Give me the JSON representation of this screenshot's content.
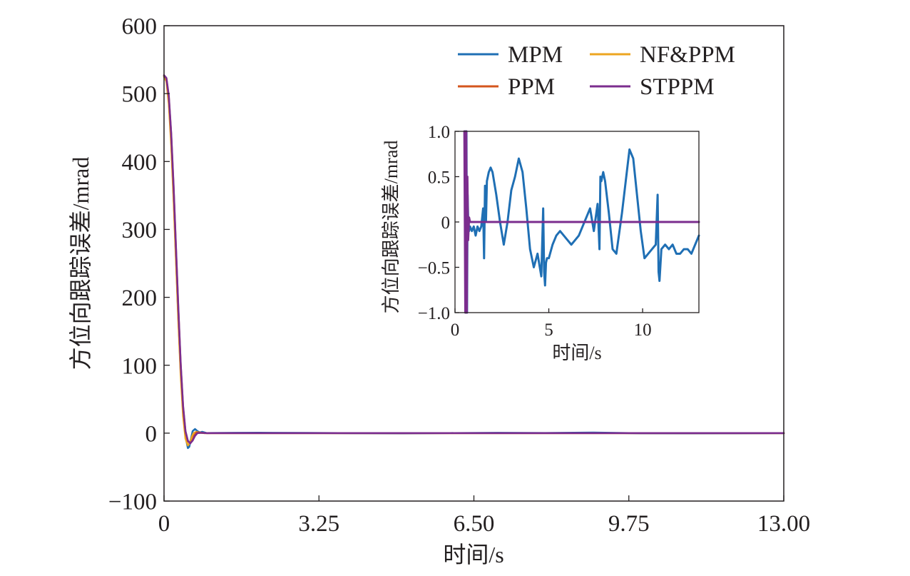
{
  "chart_data": [
    {
      "type": "line",
      "title": "",
      "xlabel": "时间/s",
      "ylabel": "方位向跟踪误差/mrad",
      "xlim": [
        0,
        13
      ],
      "ylim": [
        -100,
        600
      ],
      "xticks": [
        0,
        3.25,
        6.5,
        9.75,
        13
      ],
      "xtick_labels": [
        "0",
        "3.25",
        "6.50",
        "9.75",
        "13.00"
      ],
      "yticks": [
        -100,
        0,
        100,
        200,
        300,
        400,
        500,
        600
      ],
      "ytick_labels": [
        "−100",
        "0",
        "100",
        "200",
        "300",
        "400",
        "500",
        "600"
      ],
      "grid": false,
      "legend_position": "top-right",
      "series": [
        {
          "name": "MPM",
          "color": "#1f6fb4",
          "x": [
            0,
            0.05,
            0.1,
            0.15,
            0.2,
            0.25,
            0.3,
            0.35,
            0.4,
            0.45,
            0.5,
            0.53,
            0.56,
            0.6,
            0.65,
            0.7,
            0.75,
            0.8,
            0.9,
            1.0,
            1.5,
            2.0,
            3.0,
            4.0,
            5.0,
            6.0,
            7.0,
            8.0,
            9.0,
            10.0,
            11.0,
            12.0,
            13.0
          ],
          "y": [
            525,
            520,
            490,
            430,
            350,
            260,
            170,
            90,
            30,
            -5,
            -22,
            -20,
            -10,
            3,
            6,
            3,
            1,
            2,
            0,
            0.2,
            0.5,
            0.6,
            0.3,
            -0.1,
            -0.3,
            0.1,
            0.5,
            0.2,
            0.8,
            -0.2,
            -0.3,
            -0.2,
            0
          ]
        },
        {
          "name": "NF&PPM",
          "color": "#eca520",
          "x": [
            0,
            0.05,
            0.1,
            0.15,
            0.2,
            0.25,
            0.3,
            0.35,
            0.4,
            0.45,
            0.5,
            0.55,
            0.58,
            0.62,
            0.68,
            0.75,
            0.85,
            1.0,
            13.0
          ],
          "y": [
            525,
            518,
            485,
            425,
            345,
            255,
            165,
            85,
            25,
            -8,
            -18,
            -14,
            -6,
            0,
            2,
            0.5,
            0,
            0,
            0
          ]
        },
        {
          "name": "PPM",
          "color": "#d4561d",
          "x": [
            0,
            0.05,
            0.1,
            0.15,
            0.2,
            0.25,
            0.3,
            0.35,
            0.4,
            0.45,
            0.5,
            0.55,
            0.6,
            0.63,
            0.68,
            0.75,
            0.85,
            1.0,
            13.0
          ],
          "y": [
            527,
            522,
            495,
            440,
            362,
            272,
            182,
            100,
            38,
            2,
            -12,
            -15,
            -10,
            -4,
            1,
            1,
            0,
            0,
            0
          ]
        },
        {
          "name": "STPPM",
          "color": "#7b2d8e",
          "x": [
            0,
            0.05,
            0.1,
            0.15,
            0.2,
            0.25,
            0.3,
            0.35,
            0.4,
            0.45,
            0.5,
            0.55,
            0.6,
            0.65,
            0.7,
            0.8,
            0.9,
            1.0,
            13.0
          ],
          "y": [
            527,
            523,
            497,
            442,
            365,
            275,
            185,
            102,
            40,
            3,
            -11,
            -15,
            -11,
            -4,
            0,
            0.5,
            0,
            0,
            0
          ]
        }
      ]
    },
    {
      "type": "line",
      "title": "",
      "xlabel": "时间/s",
      "ylabel": "方位向跟踪误差/mrad",
      "xlim": [
        0,
        13
      ],
      "ylim": [
        -1.0,
        1.0
      ],
      "xticks": [
        0,
        5,
        10
      ],
      "xtick_labels": [
        "0",
        "5",
        "10"
      ],
      "yticks": [
        -1.0,
        -0.5,
        0,
        0.5,
        1.0
      ],
      "ytick_labels": [
        "−1.0",
        "−0.5",
        "0",
        "0.5",
        "1.0"
      ],
      "grid": false,
      "series": [
        {
          "name": "MPM",
          "color": "#1f6fb4",
          "x": [
            0.55,
            0.58,
            0.61,
            0.64,
            0.67,
            0.7,
            0.75,
            0.8,
            0.9,
            1.0,
            1.1,
            1.2,
            1.3,
            1.4,
            1.5,
            1.55,
            1.6,
            1.65,
            1.7,
            1.8,
            1.9,
            2.0,
            2.2,
            2.4,
            2.6,
            2.8,
            3.0,
            3.2,
            3.4,
            3.6,
            3.8,
            4.0,
            4.2,
            4.4,
            4.6,
            4.7,
            4.75,
            4.8,
            4.85,
            4.9,
            5.0,
            5.2,
            5.4,
            5.6,
            5.8,
            6.0,
            6.2,
            6.4,
            6.6,
            6.8,
            7.0,
            7.2,
            7.4,
            7.6,
            7.7,
            7.75,
            7.8,
            7.9,
            8.0,
            8.2,
            8.4,
            8.6,
            8.7,
            8.9,
            9.1,
            9.3,
            9.5,
            9.7,
            9.9,
            10.1,
            10.3,
            10.5,
            10.7,
            10.8,
            10.85,
            10.9,
            11.0,
            11.2,
            11.4,
            11.6,
            11.8,
            12.0,
            12.2,
            12.4,
            12.6,
            12.8,
            13.0
          ],
          "y": [
            1.0,
            -1.0,
            1.0,
            -1.0,
            0.3,
            0.05,
            -0.1,
            -0.05,
            -0.1,
            -0.05,
            -0.15,
            -0.05,
            -0.1,
            -0.05,
            0.15,
            -0.4,
            0.4,
            0.0,
            0.45,
            0.55,
            0.6,
            0.55,
            0.3,
            0.0,
            -0.25,
            0.0,
            0.35,
            0.5,
            0.7,
            0.55,
            0.15,
            -0.3,
            -0.5,
            -0.35,
            -0.6,
            0.15,
            -0.55,
            -0.7,
            -0.45,
            -0.4,
            -0.4,
            -0.25,
            -0.15,
            -0.1,
            -0.15,
            -0.2,
            -0.25,
            -0.2,
            -0.15,
            -0.05,
            0.05,
            0.15,
            -0.1,
            0.2,
            -0.3,
            0.5,
            0.45,
            0.55,
            0.45,
            0.1,
            -0.3,
            -0.35,
            -0.2,
            0.1,
            0.45,
            0.8,
            0.7,
            0.3,
            -0.1,
            -0.4,
            -0.35,
            -0.3,
            -0.25,
            0.3,
            -0.55,
            -0.65,
            -0.3,
            -0.25,
            -0.3,
            -0.25,
            -0.35,
            -0.35,
            -0.3,
            -0.3,
            -0.35,
            -0.25,
            -0.15
          ]
        },
        {
          "name": "STPPM",
          "color": "#7b2d8e",
          "x": [
            0.5,
            0.55,
            0.6,
            0.63,
            0.66,
            0.7,
            0.75,
            0.8,
            1.0,
            13.0
          ],
          "y": [
            1.0,
            -1.0,
            1.0,
            -1.0,
            0.5,
            -0.2,
            0.05,
            0,
            0,
            0
          ]
        }
      ]
    }
  ]
}
